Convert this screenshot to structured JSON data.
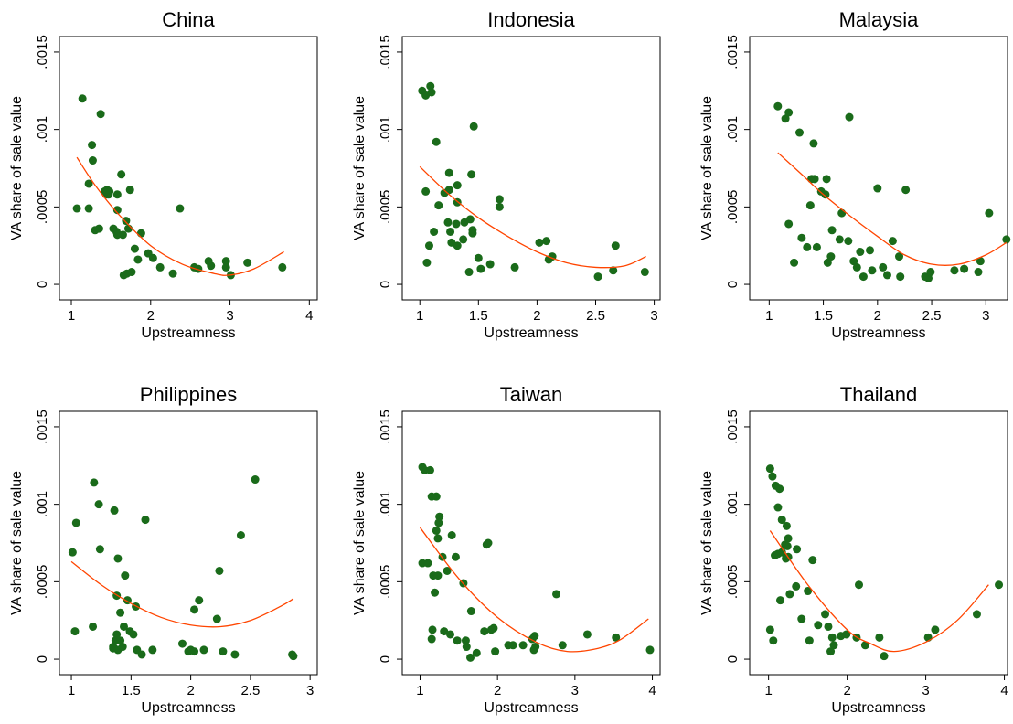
{
  "chart_data": [
    {
      "type": "scatter",
      "title": "China",
      "xlabel": "Upstreamness",
      "ylabel": "VA share of sale value",
      "x": [
        1.07,
        1.14,
        1.22,
        1.22,
        1.26,
        1.27,
        1.3,
        1.35,
        1.37,
        1.42,
        1.44,
        1.45,
        1.47,
        1.48,
        1.53,
        1.57,
        1.58,
        1.58,
        1.58,
        1.63,
        1.65,
        1.66,
        1.69,
        1.7,
        1.72,
        1.74,
        1.76,
        1.8,
        1.84,
        1.88,
        1.97,
        2.03,
        2.12,
        2.28,
        2.37,
        2.55,
        2.6,
        2.73,
        2.76,
        2.95,
        2.95,
        3.01,
        3.22,
        3.66
      ],
      "y": [
        0.00049,
        0.0012,
        0.00049,
        0.00065,
        0.0009,
        0.0008,
        0.00035,
        0.00036,
        0.0011,
        0.0006,
        0.00058,
        0.00061,
        0.00058,
        0.0006,
        0.00036,
        0.00034,
        0.00058,
        0.00032,
        0.00048,
        0.00071,
        0.00032,
        6e-05,
        0.00041,
        7e-05,
        0.00036,
        0.00061,
        8e-05,
        0.00023,
        0.00016,
        0.00033,
        0.0002,
        0.00017,
        0.00011,
        7e-05,
        0.00049,
        0.00011,
        0.0001,
        0.00015,
        0.00012,
        0.00011,
        0.00015,
        6e-05,
        0.00014,
        0.00011
      ],
      "color": "#1a6b1a",
      "fit": {
        "x": [
          1.07,
          1.3,
          1.6,
          2,
          2.4,
          2.8,
          3.0,
          3.3,
          3.68
        ],
        "y": [
          0.00082,
          0.00064,
          0.00045,
          0.00025,
          0.00013,
          7e-05,
          6e-05,
          0.0001,
          0.00021
        ],
        "color": "#ff4500"
      },
      "xlim": [
        0.85,
        4.1
      ],
      "ylim": [
        -0.0001,
        0.0016
      ],
      "xticks": [
        1,
        2,
        3,
        4
      ],
      "yticks": [
        0,
        {
          "value": 0.0005,
          "label": ".0005"
        },
        {
          "value": 0.001,
          "label": ".001"
        },
        {
          "value": 0.0015,
          "label": ".0015"
        }
      ]
    },
    {
      "type": "scatter",
      "title": "Indonesia",
      "xlabel": "Upstreamness",
      "ylabel": "VA share of sale value",
      "x": [
        1.02,
        1.05,
        1.09,
        1.1,
        1.05,
        1.08,
        1.06,
        1.14,
        1.12,
        1.16,
        1.21,
        1.24,
        1.25,
        1.25,
        1.26,
        1.27,
        1.31,
        1.32,
        1.32,
        1.32,
        1.37,
        1.38,
        1.42,
        1.43,
        1.44,
        1.45,
        1.45,
        1.46,
        1.5,
        1.52,
        1.6,
        1.68,
        1.68,
        1.81,
        2.02,
        2.08,
        2.1,
        2.13,
        2.52,
        2.65,
        2.67,
        2.92
      ],
      "y": [
        0.00125,
        0.00122,
        0.00128,
        0.00124,
        0.0006,
        0.00025,
        0.00014,
        0.00092,
        0.00034,
        0.00051,
        0.00059,
        0.0004,
        0.00072,
        0.00061,
        0.00034,
        0.00027,
        0.00039,
        0.00053,
        0.00064,
        0.00025,
        0.00029,
        0.0004,
        8e-05,
        0.00042,
        0.00071,
        0.00035,
        0.00033,
        0.00102,
        0.00017,
        0.0001,
        0.00013,
        0.0005,
        0.00055,
        0.00011,
        0.00027,
        0.00028,
        0.00016,
        0.00018,
        5e-05,
        9e-05,
        0.00025,
        8e-05
      ],
      "color": "#1a6b1a",
      "fit": {
        "x": [
          1.0,
          1.25,
          1.5,
          1.75,
          2,
          2.25,
          2.5,
          2.75,
          2.93
        ],
        "y": [
          0.00076,
          0.00058,
          0.00043,
          0.00031,
          0.00021,
          0.00014,
          0.00011,
          0.00012,
          0.00018
        ],
        "color": "#ff4500"
      },
      "xlim": [
        0.85,
        3.05
      ],
      "ylim": [
        -0.0001,
        0.0016
      ],
      "xticks": [
        1,
        1.5,
        2,
        2.5,
        3
      ],
      "yticks": [
        0,
        {
          "value": 0.0005,
          "label": ".0005"
        },
        {
          "value": 0.001,
          "label": ".001"
        },
        {
          "value": 0.0015,
          "label": ".0015"
        }
      ]
    },
    {
      "type": "scatter",
      "title": "Malaysia",
      "xlabel": "Upstreamness",
      "ylabel": "VA share of sale value",
      "x": [
        1.08,
        1.15,
        1.18,
        1.18,
        1.23,
        1.28,
        1.3,
        1.35,
        1.38,
        1.39,
        1.41,
        1.42,
        1.44,
        1.48,
        1.52,
        1.53,
        1.54,
        1.57,
        1.58,
        1.65,
        1.67,
        1.73,
        1.74,
        1.78,
        1.81,
        1.84,
        1.87,
        1.93,
        1.95,
        2.0,
        2.05,
        2.09,
        2.14,
        2.2,
        2.21,
        2.26,
        2.44,
        2.47,
        2.49,
        2.71,
        2.8,
        2.93,
        2.95,
        3.03,
        3.19
      ],
      "y": [
        0.00115,
        0.00107,
        0.00111,
        0.00039,
        0.00014,
        0.00098,
        0.0003,
        0.00024,
        0.00051,
        0.00068,
        0.00091,
        0.00068,
        0.00024,
        0.0006,
        0.00058,
        0.00068,
        0.00014,
        0.00018,
        0.00035,
        0.00029,
        0.00046,
        0.00028,
        0.00108,
        0.00015,
        0.00011,
        0.00021,
        5e-05,
        0.00022,
        9e-05,
        0.00062,
        0.00011,
        6e-05,
        0.00028,
        0.00018,
        5e-05,
        0.00061,
        5e-05,
        4e-05,
        8e-05,
        9e-05,
        0.0001,
        8e-05,
        0.00015,
        0.00046,
        0.00029
      ],
      "color": "#1a6b1a",
      "fit": {
        "x": [
          1.08,
          1.3,
          1.5,
          1.75,
          2,
          2.25,
          2.5,
          2.75,
          3,
          3.19
        ],
        "y": [
          0.00085,
          0.00071,
          0.00058,
          0.00044,
          0.00031,
          0.00019,
          0.00013,
          0.00013,
          0.00019,
          0.00027
        ],
        "color": "#ff4500"
      },
      "xlim": [
        0.82,
        3.2
      ],
      "ylim": [
        -0.0001,
        0.0016
      ],
      "xticks": [
        1,
        1.5,
        2,
        2.5,
        3
      ],
      "yticks": [
        0,
        {
          "value": 0.0005,
          "label": ".0005"
        },
        {
          "value": 0.001,
          "label": ".001"
        },
        {
          "value": 0.0015,
          "label": ".0015"
        }
      ]
    },
    {
      "type": "scatter",
      "title": "Philippines",
      "xlabel": "Upstreamness",
      "ylabel": "VA share of sale value",
      "x": [
        1.01,
        1.03,
        1.04,
        1.18,
        1.19,
        1.23,
        1.24,
        1.35,
        1.35,
        1.36,
        1.37,
        1.38,
        1.38,
        1.39,
        1.39,
        1.41,
        1.41,
        1.43,
        1.44,
        1.45,
        1.47,
        1.49,
        1.52,
        1.54,
        1.55,
        1.59,
        1.62,
        1.68,
        1.93,
        1.98,
        2.0,
        2.03,
        2.03,
        2.07,
        2.11,
        2.22,
        2.24,
        2.27,
        2.37,
        2.42,
        2.54,
        2.85,
        2.86
      ],
      "y": [
        0.00069,
        0.00018,
        0.00088,
        0.00021,
        0.00114,
        0.001,
        0.00071,
        8e-05,
        7e-05,
        0.00096,
        0.00012,
        0.00016,
        0.00041,
        0.00065,
        6e-05,
        0.00012,
        0.0003,
        8e-05,
        0.00021,
        0.00054,
        0.00038,
        0.00018,
        0.00016,
        0.00034,
        6e-05,
        3e-05,
        0.0009,
        6e-05,
        0.0001,
        5e-05,
        6e-05,
        5e-05,
        0.00032,
        0.00038,
        6e-05,
        0.00026,
        0.00057,
        5e-05,
        3e-05,
        0.0008,
        0.00116,
        3e-05,
        2e-05
      ],
      "color": "#1a6b1a",
      "fit": {
        "x": [
          1.0,
          1.25,
          1.5,
          1.75,
          2,
          2.25,
          2.5,
          2.75,
          2.86
        ],
        "y": [
          0.00063,
          0.00048,
          0.00036,
          0.00027,
          0.00022,
          0.00021,
          0.00025,
          0.00034,
          0.00039
        ],
        "color": "#ff4500"
      },
      "xlim": [
        0.9,
        3.06
      ],
      "ylim": [
        -0.0001,
        0.0016
      ],
      "xticks": [
        1,
        1.5,
        2,
        2.5,
        3
      ],
      "yticks": [
        0,
        {
          "value": 0.0005,
          "label": ".0005"
        },
        {
          "value": 0.001,
          "label": ".001"
        },
        {
          "value": 0.0015,
          "label": ".0015"
        }
      ]
    },
    {
      "type": "scatter",
      "title": "Taiwan",
      "xlabel": "Upstreamness",
      "ylabel": "VA share of sale value",
      "x": [
        1.03,
        1.06,
        1.03,
        1.1,
        1.13,
        1.15,
        1.15,
        1.16,
        1.17,
        1.19,
        1.21,
        1.21,
        1.23,
        1.23,
        1.24,
        1.25,
        1.29,
        1.31,
        1.35,
        1.39,
        1.41,
        1.46,
        1.48,
        1.56,
        1.59,
        1.6,
        1.65,
        1.66,
        1.73,
        1.83,
        1.86,
        1.88,
        1.92,
        1.95,
        1.97,
        2.14,
        2.2,
        2.33,
        2.45,
        2.47,
        2.48,
        2.49,
        2.76,
        2.84,
        3.16,
        3.53,
        3.97
      ],
      "y": [
        0.00124,
        0.00122,
        0.00062,
        0.00062,
        0.00122,
        0.00105,
        0.00013,
        0.00019,
        0.00054,
        0.00043,
        0.00105,
        0.00083,
        0.00078,
        0.00054,
        0.00088,
        0.00092,
        0.00066,
        0.00018,
        0.00057,
        0.00016,
        0.0008,
        0.00066,
        0.00012,
        0.00049,
        0.00012,
        8e-05,
        1e-05,
        0.00031,
        4e-05,
        0.00018,
        0.00074,
        0.00075,
        0.00019,
        0.0002,
        5e-05,
        9e-05,
        9e-05,
        9e-05,
        0.00013,
        6e-05,
        0.00015,
        8e-05,
        0.00042,
        9e-05,
        0.00016,
        0.00014,
        6e-05
      ],
      "color": "#1a6b1a",
      "fit": {
        "x": [
          1,
          1.5,
          2,
          2.5,
          2.9,
          3.3,
          3.6,
          3.95
        ],
        "y": [
          0.00085,
          0.00052,
          0.00027,
          0.00011,
          5e-05,
          7e-05,
          0.00013,
          0.00026
        ],
        "color": "#ff4500"
      },
      "xlim": [
        0.77,
        4.1
      ],
      "ylim": [
        -0.0001,
        0.0016
      ],
      "xticks": [
        1,
        2,
        3,
        4
      ],
      "yticks": [
        0,
        {
          "value": 0.0005,
          "label": ".0005"
        },
        {
          "value": 0.001,
          "label": ".001"
        },
        {
          "value": 0.0015,
          "label": ".0015"
        }
      ]
    },
    {
      "type": "scatter",
      "title": "Thailand",
      "xlabel": "Upstreamness",
      "ylabel": "VA share of sale value",
      "x": [
        1.02,
        1.02,
        1.05,
        1.06,
        1.08,
        1.09,
        1.12,
        1.12,
        1.14,
        1.15,
        1.17,
        1.17,
        1.21,
        1.22,
        1.23,
        1.24,
        1.25,
        1.25,
        1.27,
        1.35,
        1.36,
        1.42,
        1.5,
        1.52,
        1.56,
        1.63,
        1.72,
        1.76,
        1.79,
        1.81,
        1.83,
        1.92,
        1.99,
        2.12,
        2.15,
        2.23,
        2.41,
        2.47,
        3.03,
        3.12,
        3.65,
        3.93
      ],
      "y": [
        0.00123,
        0.00019,
        0.00118,
        0.00012,
        0.00067,
        0.00112,
        0.00098,
        0.00068,
        0.0011,
        0.00038,
        0.0009,
        0.00069,
        0.00074,
        0.00065,
        0.00086,
        0.00073,
        0.00078,
        0.00066,
        0.00042,
        0.00047,
        0.00071,
        0.00026,
        0.00044,
        0.00012,
        0.00064,
        0.00022,
        0.00029,
        0.00021,
        5e-05,
        0.00014,
        9e-05,
        0.00015,
        0.00016,
        0.00014,
        0.00048,
        9e-05,
        0.00014,
        2e-05,
        0.00014,
        0.00019,
        0.00029,
        0.00048
      ],
      "color": "#1a6b1a",
      "fit": {
        "x": [
          1.02,
          1.5,
          2,
          2.3,
          2.6,
          3,
          3.4,
          3.8
        ],
        "y": [
          0.00083,
          0.00048,
          0.00019,
          0.0001,
          5e-05,
          0.00011,
          0.00025,
          0.00048
        ],
        "color": "#ff4500"
      },
      "xlim": [
        0.76,
        4.04
      ],
      "ylim": [
        -0.0001,
        0.0016
      ],
      "xticks": [
        1,
        2,
        3,
        4
      ],
      "yticks": [
        0,
        {
          "value": 0.0005,
          "label": ".0005"
        },
        {
          "value": 0.001,
          "label": ".001"
        },
        {
          "value": 0.0015,
          "label": ".0015"
        }
      ]
    }
  ]
}
